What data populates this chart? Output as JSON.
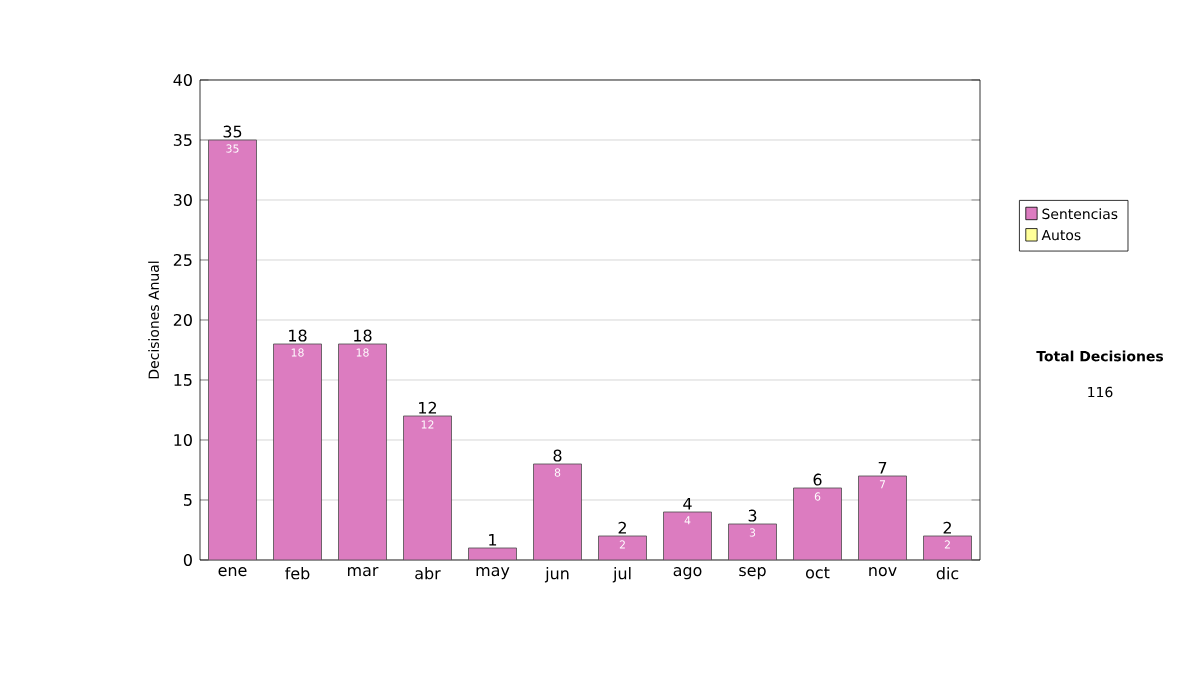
{
  "chart_data": {
    "type": "bar",
    "stacked": true,
    "ylabel": "Decisiones Anual",
    "categories": [
      "ene",
      "feb",
      "mar",
      "abr",
      "may",
      "jun",
      "jul",
      "ago",
      "sep",
      "oct",
      "nov",
      "dic"
    ],
    "series": [
      {
        "name": "Sentencias",
        "color": "#dc7cc0",
        "values": [
          35,
          18,
          18,
          12,
          1,
          8,
          2,
          4,
          3,
          6,
          7,
          2
        ],
        "value_labels": [
          "35",
          "18",
          "18",
          "12",
          null,
          "8",
          "2",
          "4",
          "3",
          "6",
          "7",
          "2"
        ]
      },
      {
        "name": "Autos",
        "color": "#ffff99",
        "values": [
          0,
          0,
          0,
          0,
          0,
          0,
          0,
          0,
          0,
          0,
          0,
          0
        ]
      }
    ],
    "totals": [
      "35",
      "18",
      "18",
      "12",
      "1",
      "8",
      "2",
      "4",
      "3",
      "6",
      "7",
      "2"
    ],
    "ylim": [
      0,
      40
    ],
    "yticks": [
      0,
      5,
      10,
      15,
      20,
      25,
      30,
      35,
      40
    ],
    "grid": "y",
    "legend": "right",
    "annotations": [
      "Total Decisiones",
      "116"
    ]
  }
}
